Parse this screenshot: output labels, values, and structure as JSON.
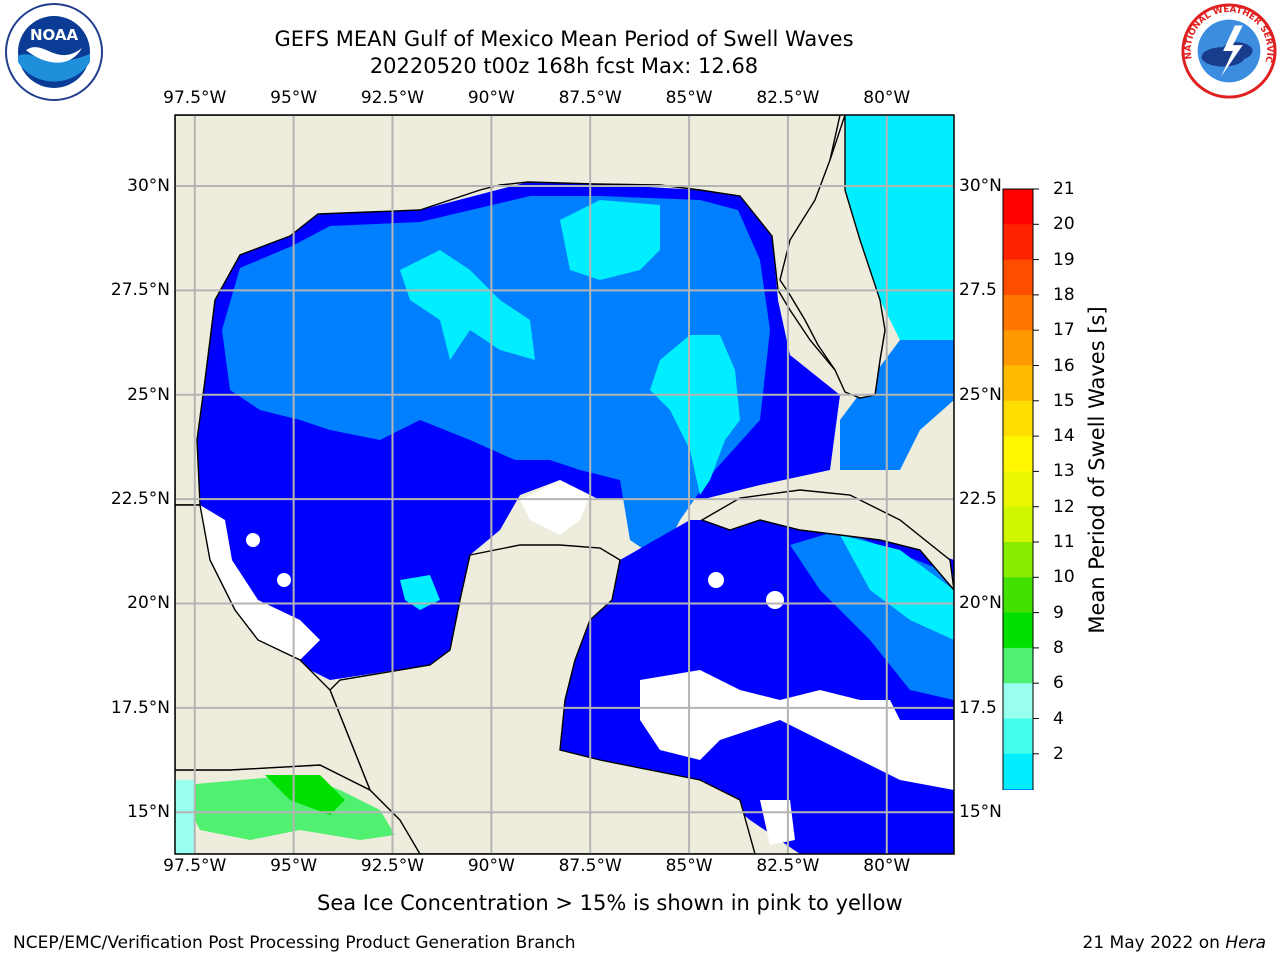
{
  "title": {
    "line1": "GEFS MEAN Gulf of Mexico Mean Period of Swell Waves",
    "line2": "20220520 t00z 168h fcst   Max: 12.68"
  },
  "map": {
    "lon_labels": [
      "97.5°W",
      "95°W",
      "92.5°W",
      "90°W",
      "87.5°W",
      "85°W",
      "82.5°W",
      "80°W"
    ],
    "lat_labels_left": [
      "30°N",
      "27.5°N",
      "25°N",
      "22.5°N",
      "20°N",
      "17.5°N",
      "15°N"
    ],
    "lat_labels_right": [
      "30°N",
      "27.5",
      "25°N",
      "22.5",
      "20°N",
      "17.5",
      "15°N"
    ],
    "lon_range": [
      -98,
      -78.3
    ],
    "lat_range": [
      14,
      31.7
    ],
    "land_color": "#eeecdc",
    "no_data_color": "#ffffff",
    "grid_color": "#b4b4b4"
  },
  "colorbar": {
    "label": "Mean Period of Swell Waves [s]",
    "ticks": [
      "21",
      "20",
      "19",
      "18",
      "17",
      "16",
      "15",
      "14",
      "13",
      "12",
      "11",
      "10",
      "9",
      "8",
      "6",
      "4",
      "2"
    ],
    "colors": [
      "#ff0000",
      "#ff2200",
      "#ff4d00",
      "#ff7700",
      "#ff9900",
      "#ffbb00",
      "#ffdd00",
      "#fff600",
      "#eaf700",
      "#d0f700",
      "#88ee00",
      "#44e000",
      "#00e000",
      "#50f070",
      "#99ffee",
      "#44ffee",
      "#00eeff",
      "#0080ff",
      "#0000ff"
    ]
  },
  "note": "Sea Ice Concentration > 15% is shown in pink to yellow",
  "footer": {
    "left": "NCEP/EMC/Verification Post Processing Product Generation Branch",
    "date": "21 May 2022 on",
    "machine": "Hera"
  },
  "logos": {
    "noaa_text": "NOAA",
    "nws_ring_text": "NATIONAL WEATHER SERVICE"
  }
}
